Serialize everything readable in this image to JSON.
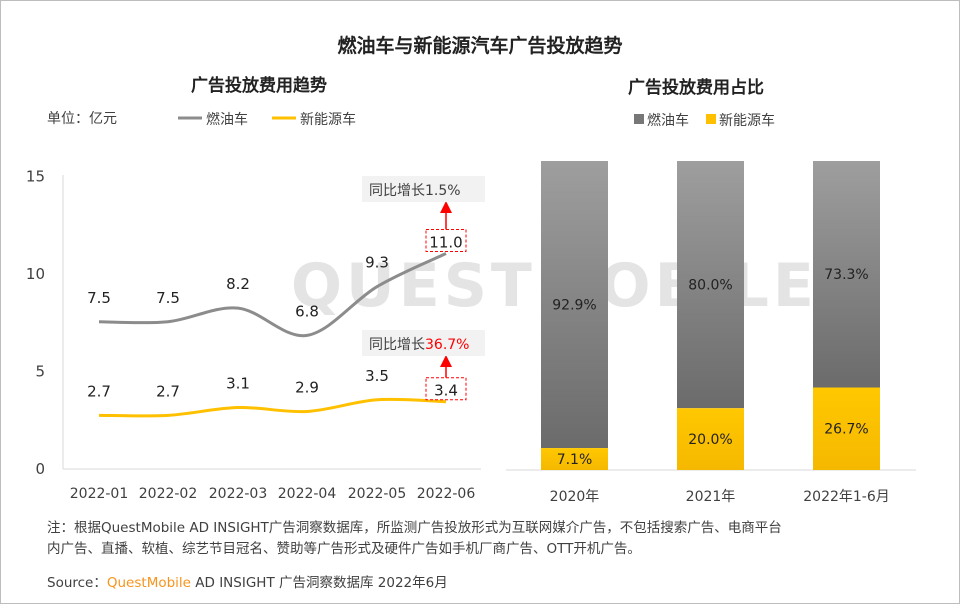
{
  "title": "燃油车与新能源汽车广告投放趋势",
  "watermark": "QUESTMOBILE",
  "colors": {
    "fuel": "#8c8c8c",
    "ev": "#ffc000",
    "fuel_bar_top": "#9e9e9e",
    "fuel_bar_bottom": "#6b6b6b",
    "ev_bar_top": "#ffc800",
    "ev_bar_bottom": "#f5b800",
    "annotation": "#ff0000",
    "source_brand": "#f7941d"
  },
  "chart_data": [
    {
      "type": "line",
      "title": "广告投放费用趋势",
      "unit_label": "单位：亿元",
      "categories": [
        "2022-01",
        "2022-02",
        "2022-03",
        "2022-04",
        "2022-05",
        "2022-06"
      ],
      "ylim": [
        0,
        15
      ],
      "yticks": [
        "0",
        "5",
        "10",
        "15"
      ],
      "grid": false,
      "legend": "top",
      "series": [
        {
          "name": "燃油车",
          "values": [
            7.5,
            7.5,
            8.2,
            6.8,
            9.3,
            11.0
          ],
          "labels": [
            "7.5",
            "7.5",
            "8.2",
            "6.8",
            "9.3",
            "11.0"
          ]
        },
        {
          "name": "新能源车",
          "values": [
            2.7,
            2.7,
            3.1,
            2.9,
            3.5,
            3.4
          ],
          "labels": [
            "2.7",
            "2.7",
            "3.1",
            "2.9",
            "3.5",
            "3.4"
          ]
        }
      ],
      "annotations": [
        {
          "prefix": "同比增长",
          "value": "1.5%",
          "highlight": false
        },
        {
          "prefix": "同比增长",
          "value": "36.7%",
          "highlight": true
        }
      ]
    },
    {
      "type": "bar",
      "stacked": true,
      "percent": true,
      "title": "广告投放费用占比",
      "categories": [
        "2020年",
        "2021年",
        "2022年1-6月"
      ],
      "legend": "top",
      "series": [
        {
          "name": "燃油车",
          "values": [
            92.9,
            80.0,
            73.3
          ],
          "labels": [
            "92.9%",
            "80.0%",
            "73.3%"
          ]
        },
        {
          "name": "新能源车",
          "values": [
            7.1,
            20.0,
            26.7
          ],
          "labels": [
            "7.1%",
            "20.0%",
            "26.7%"
          ]
        }
      ]
    }
  ],
  "note": [
    "注：根据QuestMobile AD INSIGHT广告洞察数据库，所监测广告投放形式为互联网媒介广告，不包括搜索广告、电商平台",
    "内广告、直播、软植、综艺节目冠名、赞助等广告形式及硬件广告如手机厂商广告、OTT开机广告。"
  ],
  "source": {
    "label": "Source：",
    "brand": "QuestMobile",
    "rest": "AD INSIGHT 广告洞察数据库 2022年6月"
  }
}
